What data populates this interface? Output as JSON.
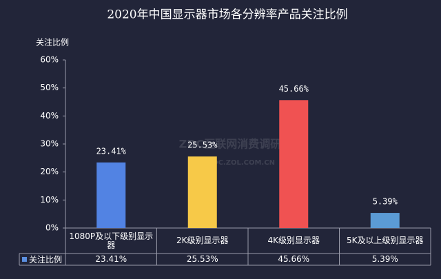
{
  "chart_data": {
    "type": "bar",
    "title": "2020年中国显示器市场各分辨率产品关注比例",
    "y_label": "关注比例",
    "categories": [
      "1080P及以下级别显示器",
      "2K级别显示器",
      "4K级别显示器",
      "5K及以上级别显示器"
    ],
    "series": [
      {
        "name": "关注比例",
        "color": "#5b8fe0",
        "values": [
          23.41,
          25.53,
          45.66,
          5.39
        ],
        "value_labels": [
          "23.41%",
          "25.53%",
          "45.66%",
          "5.39%"
        ],
        "colors": [
          "#5283e3",
          "#f7c948",
          "#f05252",
          "#5b9bd5"
        ]
      }
    ],
    "ylim": [
      0,
      60
    ],
    "yticks": [
      {
        "value": 0,
        "label": "0%"
      },
      {
        "value": 10,
        "label": "10%"
      },
      {
        "value": 20,
        "label": "20%"
      },
      {
        "value": 30,
        "label": "30%"
      },
      {
        "value": 40,
        "label": "40%"
      },
      {
        "value": 50,
        "label": "50%"
      },
      {
        "value": 60,
        "label": "60%"
      }
    ],
    "watermark": [
      "ZDC互联网消费调研中心",
      "ZDC.ZOL.COM.CN"
    ]
  }
}
